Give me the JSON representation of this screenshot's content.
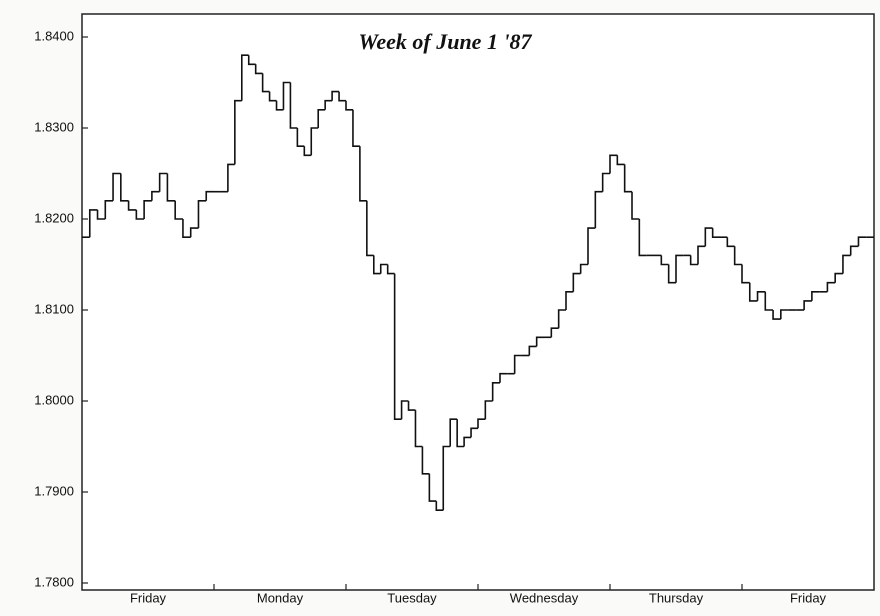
{
  "chart_data": {
    "type": "step",
    "title": "Week of June 1 '87",
    "categories": [
      "Friday",
      "Monday",
      "Tuesday",
      "Wednesday",
      "Thursday",
      "Friday"
    ],
    "values": [
      [
        1.818,
        1.821,
        1.82,
        1.822,
        1.825,
        1.822,
        1.821,
        1.82,
        1.822,
        1.823,
        1.825,
        1.822,
        1.82,
        1.818,
        1.819,
        1.822,
        1.823
      ],
      [
        1.823,
        1.823,
        1.826,
        1.833,
        1.838,
        1.837,
        1.836,
        1.834,
        1.833,
        1.832,
        1.835,
        1.83,
        1.828,
        1.827,
        1.83,
        1.832,
        1.833,
        1.834,
        1.833
      ],
      [
        1.832,
        1.828,
        1.822,
        1.816,
        1.814,
        1.815,
        1.814,
        1.798,
        1.8,
        1.799,
        1.795,
        1.792,
        1.789,
        1.788,
        1.795,
        1.798,
        1.795,
        1.796,
        1.797
      ],
      [
        1.798,
        1.8,
        1.802,
        1.803,
        1.803,
        1.805,
        1.805,
        1.806,
        1.807,
        1.807,
        1.808,
        1.81,
        1.812,
        1.814,
        1.815,
        1.819,
        1.823,
        1.825
      ],
      [
        1.827,
        1.826,
        1.823,
        1.82,
        1.816,
        1.816,
        1.816,
        1.815,
        1.813,
        1.816,
        1.816,
        1.815,
        1.817,
        1.819,
        1.818,
        1.818,
        1.817,
        1.815
      ],
      [
        1.813,
        1.811,
        1.812,
        1.81,
        1.809,
        1.81,
        1.81,
        1.81,
        1.811,
        1.812,
        1.812,
        1.813,
        1.814,
        1.816,
        1.817,
        1.818,
        1.818
      ]
    ],
    "color": "#111111",
    "ylim": [
      1.78,
      1.84
    ],
    "yticks": [
      {
        "value": 1.78,
        "label": "1.7800"
      },
      {
        "value": 1.79,
        "label": "1.7900"
      },
      {
        "value": 1.8,
        "label": "1.8000"
      },
      {
        "value": 1.81,
        "label": "1.8100"
      },
      {
        "value": 1.82,
        "label": "1.8200"
      },
      {
        "value": 1.83,
        "label": "1.8300"
      },
      {
        "value": 1.84,
        "label": "1.8400"
      }
    ],
    "grid": false
  }
}
